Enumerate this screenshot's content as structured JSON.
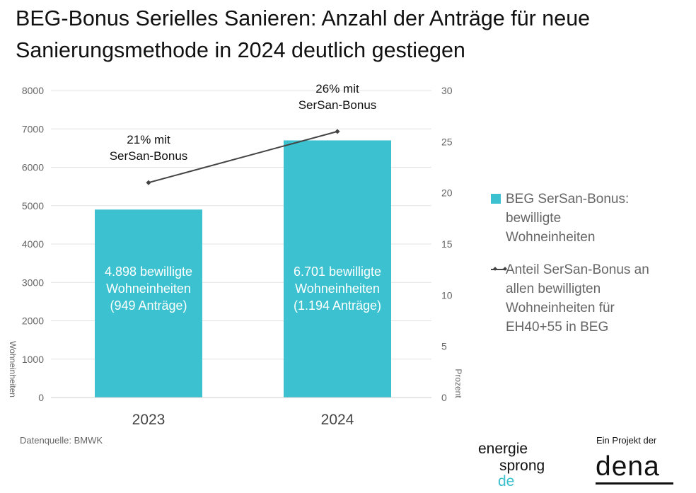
{
  "title_lines": [
    "BEG-Bonus Serielles Sanieren: Anzahl der Anträge für neue",
    "Sanierungsmethode in 2024 deutlich gestiegen"
  ],
  "colors": {
    "bar": "#3bc1cf",
    "line": "#444444",
    "grid": "#e3e3e3",
    "axis_text": "#666666"
  },
  "chart_data": {
    "type": "bar",
    "categories": [
      "2023",
      "2024"
    ],
    "series": [
      {
        "name": "BEG SerSan-Bonus: bewilligte Wohneinheiten",
        "kind": "bar",
        "axis": "left",
        "values": [
          4898,
          6701
        ],
        "bar_labels": [
          [
            "4.898 bewilligte",
            "Wohneinheiten",
            "(949 Anträge)"
          ],
          [
            "6.701 bewilligte",
            "Wohneinheiten",
            "(1.194 Anträge)"
          ]
        ]
      },
      {
        "name": "Anteil SerSan-Bonus an allen bewilligten Wohneinheiten für EH40+55 in BEG",
        "kind": "line",
        "axis": "right",
        "values": [
          21,
          26
        ],
        "point_labels": [
          [
            "21% mit",
            "SerSan-Bonus"
          ],
          [
            "26% mit",
            "SerSan-Bonus"
          ]
        ]
      }
    ],
    "y_left": {
      "label": "Wohneinheiten",
      "min": 0,
      "max": 8000,
      "ticks": [
        "0",
        "1000",
        "2000",
        "3000",
        "4000",
        "5000",
        "6000",
        "7000",
        "8000"
      ]
    },
    "y_right": {
      "label": "Prozent",
      "min": 0,
      "max": 30,
      "ticks": [
        "0",
        "5",
        "10",
        "15",
        "20",
        "25",
        "30"
      ]
    },
    "grid": true,
    "legend_position": "right"
  },
  "legend": {
    "bar": [
      "BEG SerSan-Bonus:",
      "bewilligte",
      "Wohneinheiten"
    ],
    "line": [
      "Anteil SerSan-Bonus an",
      "allen bewilligten",
      "Wohneinheiten für",
      "EH40+55 in BEG"
    ]
  },
  "source": "Datenquelle: BMWK",
  "logos": {
    "energiesprong": [
      "energie",
      "sprong",
      "de"
    ],
    "project_label": "Ein Projekt der",
    "dena": "dena"
  }
}
